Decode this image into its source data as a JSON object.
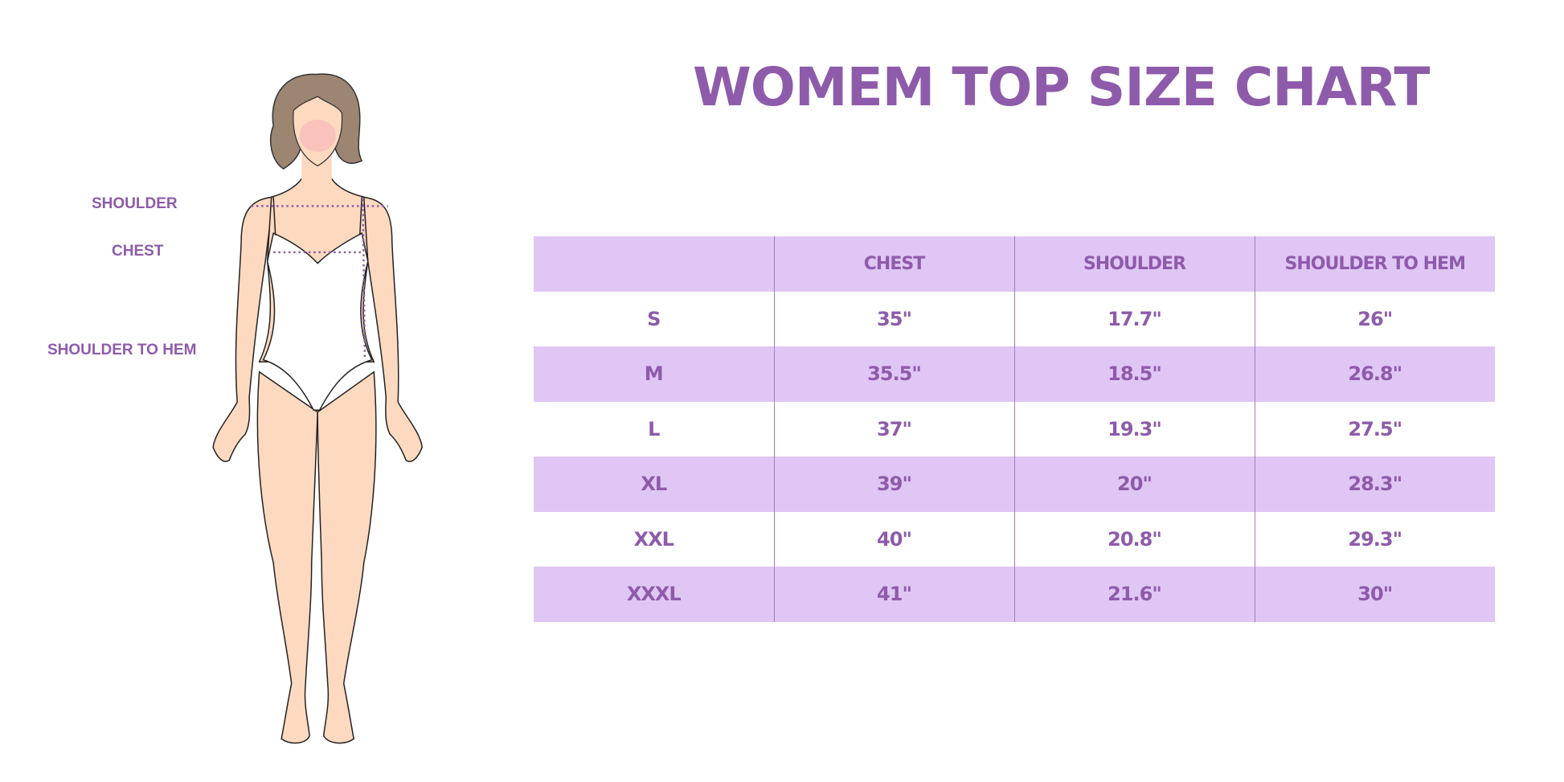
{
  "title": "WOMEM TOP SIZE CHART",
  "figure_labels": {
    "shoulder": "SHOULDER",
    "chest": "CHEST",
    "shoulder_to_hem": "SHOULDER TO HEM"
  },
  "colors": {
    "accent": "#8e5bab",
    "row_fill": "#e0c6f4",
    "skin": "#fdd9c0",
    "hair": "#9c8571"
  },
  "table": {
    "headers": [
      "",
      "CHEST",
      "SHOULDER",
      "SHOULDER TO HEM"
    ],
    "rows": [
      [
        "S",
        "35\"",
        "17.7\"",
        "26\""
      ],
      [
        "M",
        "35.5\"",
        "18.5\"",
        "26.8\""
      ],
      [
        "L",
        "37\"",
        "19.3\"",
        "27.5\""
      ],
      [
        "XL",
        "39\"",
        "20\"",
        "28.3\""
      ],
      [
        "XXL",
        "40\"",
        "20.8\"",
        "29.3\""
      ],
      [
        "XXXL",
        "41\"",
        "21.6\"",
        "30\""
      ]
    ]
  }
}
